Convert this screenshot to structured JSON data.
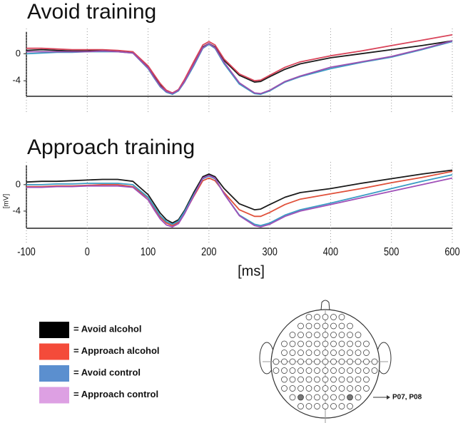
{
  "chart_data": [
    {
      "type": "line",
      "title": "Avoid training",
      "x": [
        -100,
        -75,
        -50,
        -25,
        0,
        25,
        50,
        75,
        100,
        110,
        120,
        130,
        140,
        150,
        160,
        175,
        190,
        200,
        210,
        225,
        250,
        275,
        285,
        300,
        325,
        350,
        400,
        450,
        500,
        550,
        600
      ],
      "xlim": [
        -100,
        600
      ],
      "xticks": [
        -100,
        0,
        100,
        200,
        300,
        400,
        500,
        600
      ],
      "show_xtick_labels": false,
      "ylim": [
        -6.3,
        3.2
      ],
      "yticks": [
        -4,
        0
      ],
      "series": [
        {
          "color": "#1a1a1a",
          "values": [
            0.5,
            0.6,
            0.5,
            0.4,
            0.4,
            0.5,
            0.4,
            0.2,
            -2.0,
            -3.3,
            -4.6,
            -5.5,
            -5.9,
            -5.4,
            -4.0,
            -1.5,
            1.0,
            1.5,
            1.0,
            -1.0,
            -3.2,
            -4.2,
            -4.1,
            -3.4,
            -2.3,
            -1.5,
            -0.6,
            0.0,
            0.6,
            1.2,
            1.9
          ]
        },
        {
          "color": "#d9445a",
          "values": [
            0.8,
            0.8,
            0.7,
            0.6,
            0.6,
            0.6,
            0.5,
            0.3,
            -1.8,
            -3.1,
            -4.4,
            -5.4,
            -5.8,
            -5.3,
            -3.8,
            -1.2,
            1.3,
            1.8,
            1.3,
            -0.8,
            -3.0,
            -4.0,
            -3.9,
            -3.2,
            -2.0,
            -1.2,
            -0.3,
            0.4,
            1.2,
            2.0,
            2.8
          ]
        },
        {
          "color": "#3a9cc4",
          "values": [
            0.0,
            0.1,
            0.2,
            0.2,
            0.3,
            0.3,
            0.3,
            0.1,
            -2.2,
            -3.6,
            -4.9,
            -5.7,
            -6.0,
            -5.5,
            -4.2,
            -1.8,
            0.8,
            1.4,
            0.8,
            -1.5,
            -4.5,
            -5.9,
            -6.0,
            -5.5,
            -4.2,
            -3.4,
            -2.2,
            -1.3,
            -0.5,
            0.6,
            1.8
          ]
        },
        {
          "color": "#9a50b0",
          "values": [
            0.3,
            0.3,
            0.3,
            0.3,
            0.3,
            0.4,
            0.3,
            0.1,
            -2.1,
            -3.5,
            -4.8,
            -5.6,
            -5.9,
            -5.4,
            -4.1,
            -1.6,
            0.9,
            1.5,
            0.9,
            -1.3,
            -4.3,
            -5.8,
            -5.9,
            -5.4,
            -4.1,
            -3.3,
            -2.0,
            -1.2,
            -0.4,
            0.7,
            1.9
          ]
        }
      ]
    },
    {
      "type": "line",
      "title": "Approach training",
      "xlabel": "[ms]",
      "ylabel": "[mV]",
      "x": [
        -100,
        -75,
        -50,
        -25,
        0,
        25,
        50,
        75,
        100,
        110,
        120,
        130,
        140,
        150,
        160,
        175,
        190,
        200,
        210,
        225,
        250,
        275,
        285,
        300,
        325,
        350,
        400,
        450,
        500,
        550,
        600
      ],
      "xlim": [
        -100,
        600
      ],
      "xticks": [
        -100,
        0,
        100,
        200,
        300,
        400,
        500,
        600
      ],
      "show_xtick_labels": true,
      "ylim": [
        -6.6,
        2.9
      ],
      "yticks": [
        -4,
        0
      ],
      "series": [
        {
          "color": "#1a1a1a",
          "values": [
            0.4,
            0.5,
            0.5,
            0.6,
            0.7,
            0.8,
            0.8,
            0.5,
            -1.5,
            -2.9,
            -4.3,
            -5.3,
            -5.8,
            -5.3,
            -3.9,
            -1.2,
            1.2,
            1.6,
            1.2,
            -0.6,
            -2.9,
            -3.8,
            -3.7,
            -3.0,
            -1.9,
            -1.2,
            -0.6,
            0.2,
            0.9,
            1.6,
            2.2
          ]
        },
        {
          "color": "#e0503a",
          "values": [
            -0.3,
            -0.3,
            -0.2,
            -0.2,
            -0.1,
            0.0,
            0.0,
            -0.3,
            -2.0,
            -3.5,
            -4.9,
            -5.8,
            -6.2,
            -5.7,
            -4.3,
            -1.8,
            0.6,
            1.0,
            0.6,
            -1.2,
            -3.8,
            -4.8,
            -4.8,
            -4.2,
            -3.0,
            -2.2,
            -1.4,
            -0.6,
            0.3,
            1.1,
            2.0
          ]
        },
        {
          "color": "#3a9cc4",
          "values": [
            0.0,
            0.0,
            0.1,
            0.1,
            0.2,
            0.2,
            0.2,
            0.0,
            -1.9,
            -3.3,
            -4.7,
            -5.6,
            -6.0,
            -5.5,
            -4.1,
            -1.5,
            0.9,
            1.3,
            0.9,
            -1.4,
            -4.6,
            -6.0,
            -6.2,
            -5.8,
            -4.6,
            -3.8,
            -2.8,
            -1.7,
            -0.6,
            0.5,
            1.5
          ]
        },
        {
          "color": "#a050b8",
          "values": [
            -0.4,
            -0.4,
            -0.3,
            -0.3,
            -0.2,
            -0.2,
            -0.2,
            -0.4,
            -2.3,
            -3.8,
            -5.2,
            -6.1,
            -6.4,
            -5.9,
            -4.4,
            -1.7,
            1.0,
            1.4,
            1.0,
            -1.4,
            -4.7,
            -6.2,
            -6.4,
            -6.0,
            -4.8,
            -4.0,
            -3.0,
            -2.0,
            -1.0,
            0.0,
            1.0
          ]
        }
      ]
    }
  ],
  "legend": [
    {
      "label": "= Avoid alcohol",
      "color": "#000000"
    },
    {
      "label": "= Approach alcohol",
      "color": "#f44b3a"
    },
    {
      "label": "= Avoid control",
      "color": "#5b8fcf"
    },
    {
      "label": "= Approach control",
      "color": "#dda0e3"
    }
  ],
  "head": {
    "annotation": "P07, P08"
  }
}
